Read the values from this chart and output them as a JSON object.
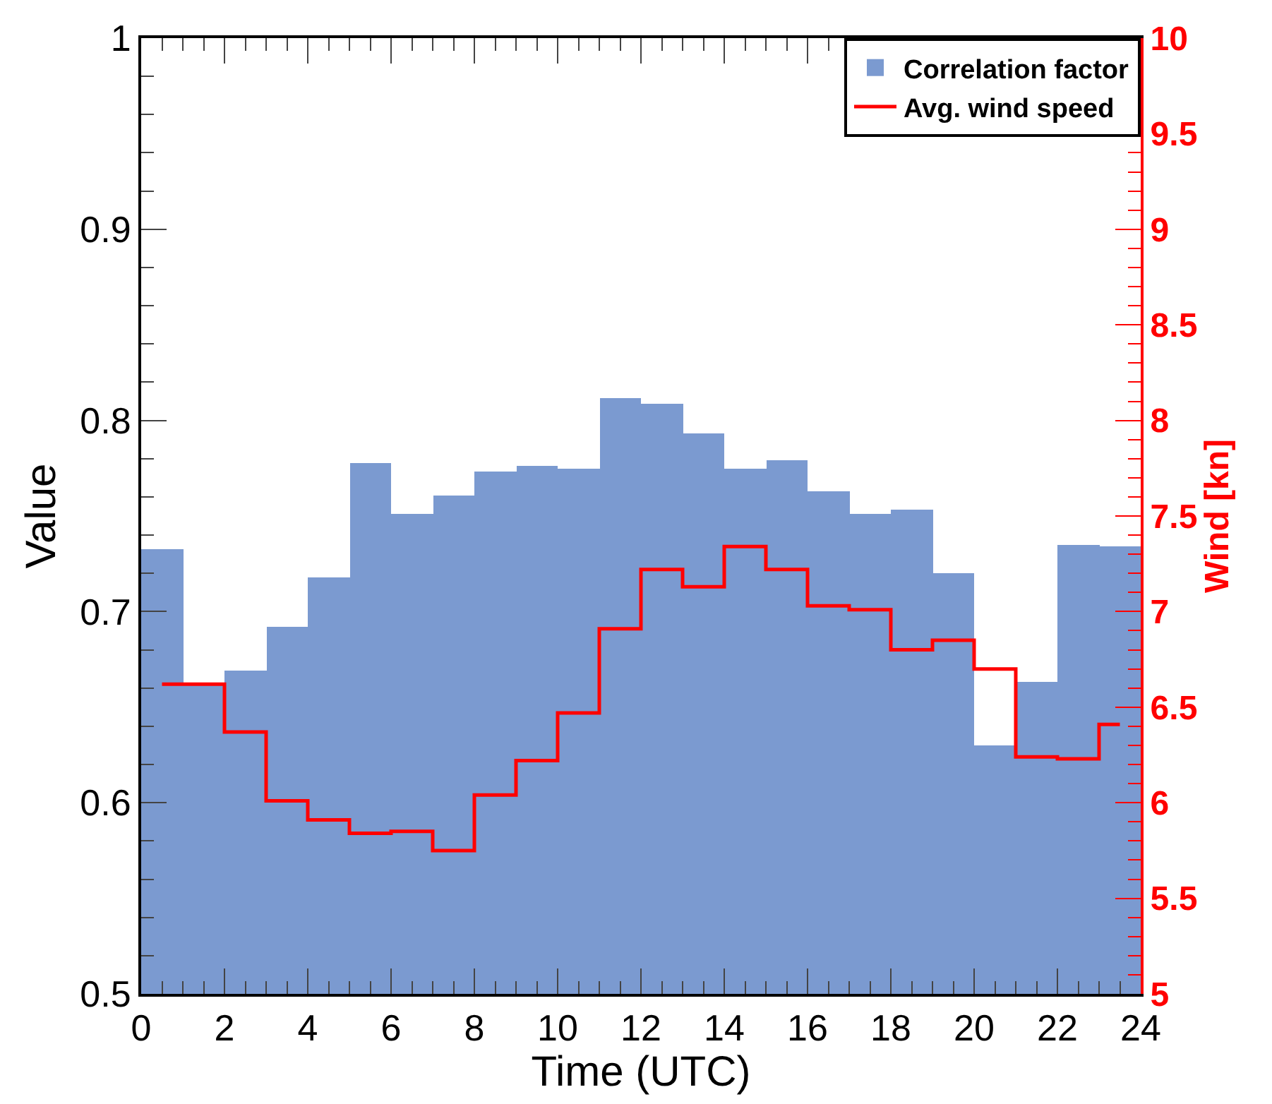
{
  "chart_data": {
    "type": "histogram",
    "xlabel": "Time (UTC)",
    "ylabel": "Value",
    "y2label": "Wind [kn]",
    "bins": [
      0,
      1,
      2,
      3,
      4,
      5,
      6,
      7,
      8,
      9,
      10,
      11,
      12,
      13,
      14,
      15,
      16,
      17,
      18,
      19,
      20,
      21,
      22,
      23,
      24
    ],
    "series": [
      {
        "name": "Correlation factor",
        "color": "#7b9ad0",
        "values": [
          0.733,
          0.662,
          0.669,
          0.692,
          0.718,
          0.778,
          0.751,
          0.761,
          0.773,
          0.776,
          0.775,
          0.812,
          0.809,
          0.793,
          0.775,
          0.779,
          0.763,
          0.751,
          0.753,
          0.72,
          0.63,
          0.663,
          0.735,
          0.734
        ]
      },
      {
        "name": "Avg. wind speed",
        "type": "step",
        "axis": "y2",
        "color": "#ff0000",
        "x": [
          0.5,
          1.5,
          2.5,
          3.5,
          4.5,
          5.5,
          6.5,
          7.5,
          8.5,
          9.5,
          10.5,
          11.5,
          12.5,
          13.5,
          14.5,
          15.5,
          16.5,
          17.5,
          18.5,
          19.5,
          20.5,
          21.5,
          22.5,
          23.5
        ],
        "values": [
          6.62,
          6.62,
          6.37,
          6.01,
          5.91,
          5.84,
          5.85,
          5.75,
          6.04,
          6.22,
          6.47,
          6.91,
          7.22,
          7.13,
          7.34,
          7.22,
          7.03,
          7.01,
          6.8,
          6.85,
          6.7,
          6.24,
          6.23,
          6.41
        ]
      }
    ],
    "xlim": [
      0,
      24
    ],
    "xticks": [
      0,
      2,
      4,
      6,
      8,
      10,
      12,
      14,
      16,
      18,
      20,
      22,
      24
    ],
    "ylim": [
      0.5,
      1
    ],
    "yticks": [
      0.5,
      0.6,
      0.7,
      0.8,
      0.9,
      1
    ],
    "y2lim": [
      5,
      10
    ],
    "y2ticks": [
      5,
      5.5,
      6,
      6.5,
      7,
      7.5,
      8,
      8.5,
      9,
      9.5,
      10
    ],
    "legend": "top right"
  }
}
